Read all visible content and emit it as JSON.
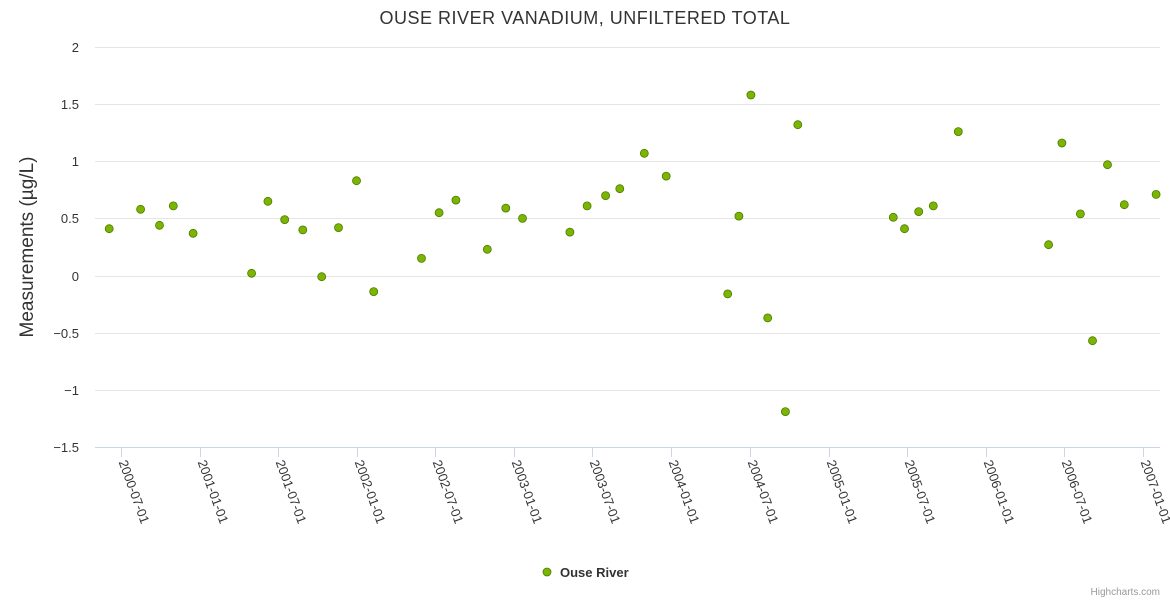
{
  "chart_data": {
    "type": "scatter",
    "title": "OUSE RIVER VANADIUM, UNFILTERED TOTAL",
    "xlabel": "",
    "ylabel": "Measurements (µg/L)",
    "ylim": [
      -1.5,
      2
    ],
    "yticks": [
      "2",
      "1.5",
      "1",
      "0.5",
      "0",
      "−0.5",
      "−1",
      "−1.5"
    ],
    "ytick_values": [
      2,
      1.5,
      1,
      0.5,
      0,
      -0.5,
      -1,
      -1.5
    ],
    "xlim": [
      "2000-05-01",
      "2007-02-10"
    ],
    "xticks": [
      "2000-07-01",
      "2001-01-01",
      "2001-07-01",
      "2002-01-01",
      "2002-07-01",
      "2003-01-01",
      "2003-07-01",
      "2004-01-01",
      "2004-07-01",
      "2005-01-01",
      "2005-07-01",
      "2006-01-01",
      "2006-07-01",
      "2007-01-01"
    ],
    "grid": true,
    "legend_position": "bottom-center",
    "series": [
      {
        "name": "Ouse River",
        "color": "#7cb500",
        "points": [
          {
            "x": "2000-06-03",
            "y": 0.41
          },
          {
            "x": "2000-08-15",
            "y": 0.58
          },
          {
            "x": "2000-09-28",
            "y": 0.44
          },
          {
            "x": "2000-10-30",
            "y": 0.61
          },
          {
            "x": "2000-12-15",
            "y": 0.37
          },
          {
            "x": "2001-04-30",
            "y": 0.02
          },
          {
            "x": "2001-06-07",
            "y": 0.65
          },
          {
            "x": "2001-07-16",
            "y": 0.49
          },
          {
            "x": "2001-08-27",
            "y": 0.4
          },
          {
            "x": "2001-10-10",
            "y": -0.01
          },
          {
            "x": "2001-11-18",
            "y": 0.42
          },
          {
            "x": "2001-12-30",
            "y": 0.83
          },
          {
            "x": "2002-02-08",
            "y": -0.14
          },
          {
            "x": "2002-05-30",
            "y": 0.15
          },
          {
            "x": "2002-07-10",
            "y": 0.55
          },
          {
            "x": "2002-08-18",
            "y": 0.66
          },
          {
            "x": "2002-10-30",
            "y": 0.23
          },
          {
            "x": "2002-12-12",
            "y": 0.59
          },
          {
            "x": "2003-01-20",
            "y": 0.5
          },
          {
            "x": "2003-05-10",
            "y": 0.38
          },
          {
            "x": "2003-06-19",
            "y": 0.61
          },
          {
            "x": "2003-08-01",
            "y": 0.7
          },
          {
            "x": "2003-09-03",
            "y": 0.76
          },
          {
            "x": "2003-10-30",
            "y": 1.07
          },
          {
            "x": "2003-12-20",
            "y": 0.87
          },
          {
            "x": "2004-05-11",
            "y": -0.16
          },
          {
            "x": "2004-06-06",
            "y": 0.52
          },
          {
            "x": "2004-07-04",
            "y": 1.58
          },
          {
            "x": "2004-08-12",
            "y": -0.37
          },
          {
            "x": "2004-09-22",
            "y": -1.19
          },
          {
            "x": "2004-10-21",
            "y": 1.32
          },
          {
            "x": "2005-05-31",
            "y": 0.51
          },
          {
            "x": "2005-06-26",
            "y": 0.41
          },
          {
            "x": "2005-07-29",
            "y": 0.56
          },
          {
            "x": "2005-09-01",
            "y": 0.61
          },
          {
            "x": "2005-10-29",
            "y": 1.26
          },
          {
            "x": "2006-05-27",
            "y": 0.27
          },
          {
            "x": "2006-06-27",
            "y": 1.16
          },
          {
            "x": "2006-08-09",
            "y": 0.54
          },
          {
            "x": "2006-09-06",
            "y": -0.57
          },
          {
            "x": "2006-10-11",
            "y": 0.97
          },
          {
            "x": "2006-11-19",
            "y": 0.62
          },
          {
            "x": "2007-02-01",
            "y": 0.71
          }
        ]
      }
    ]
  },
  "credits": "Highcharts.com"
}
